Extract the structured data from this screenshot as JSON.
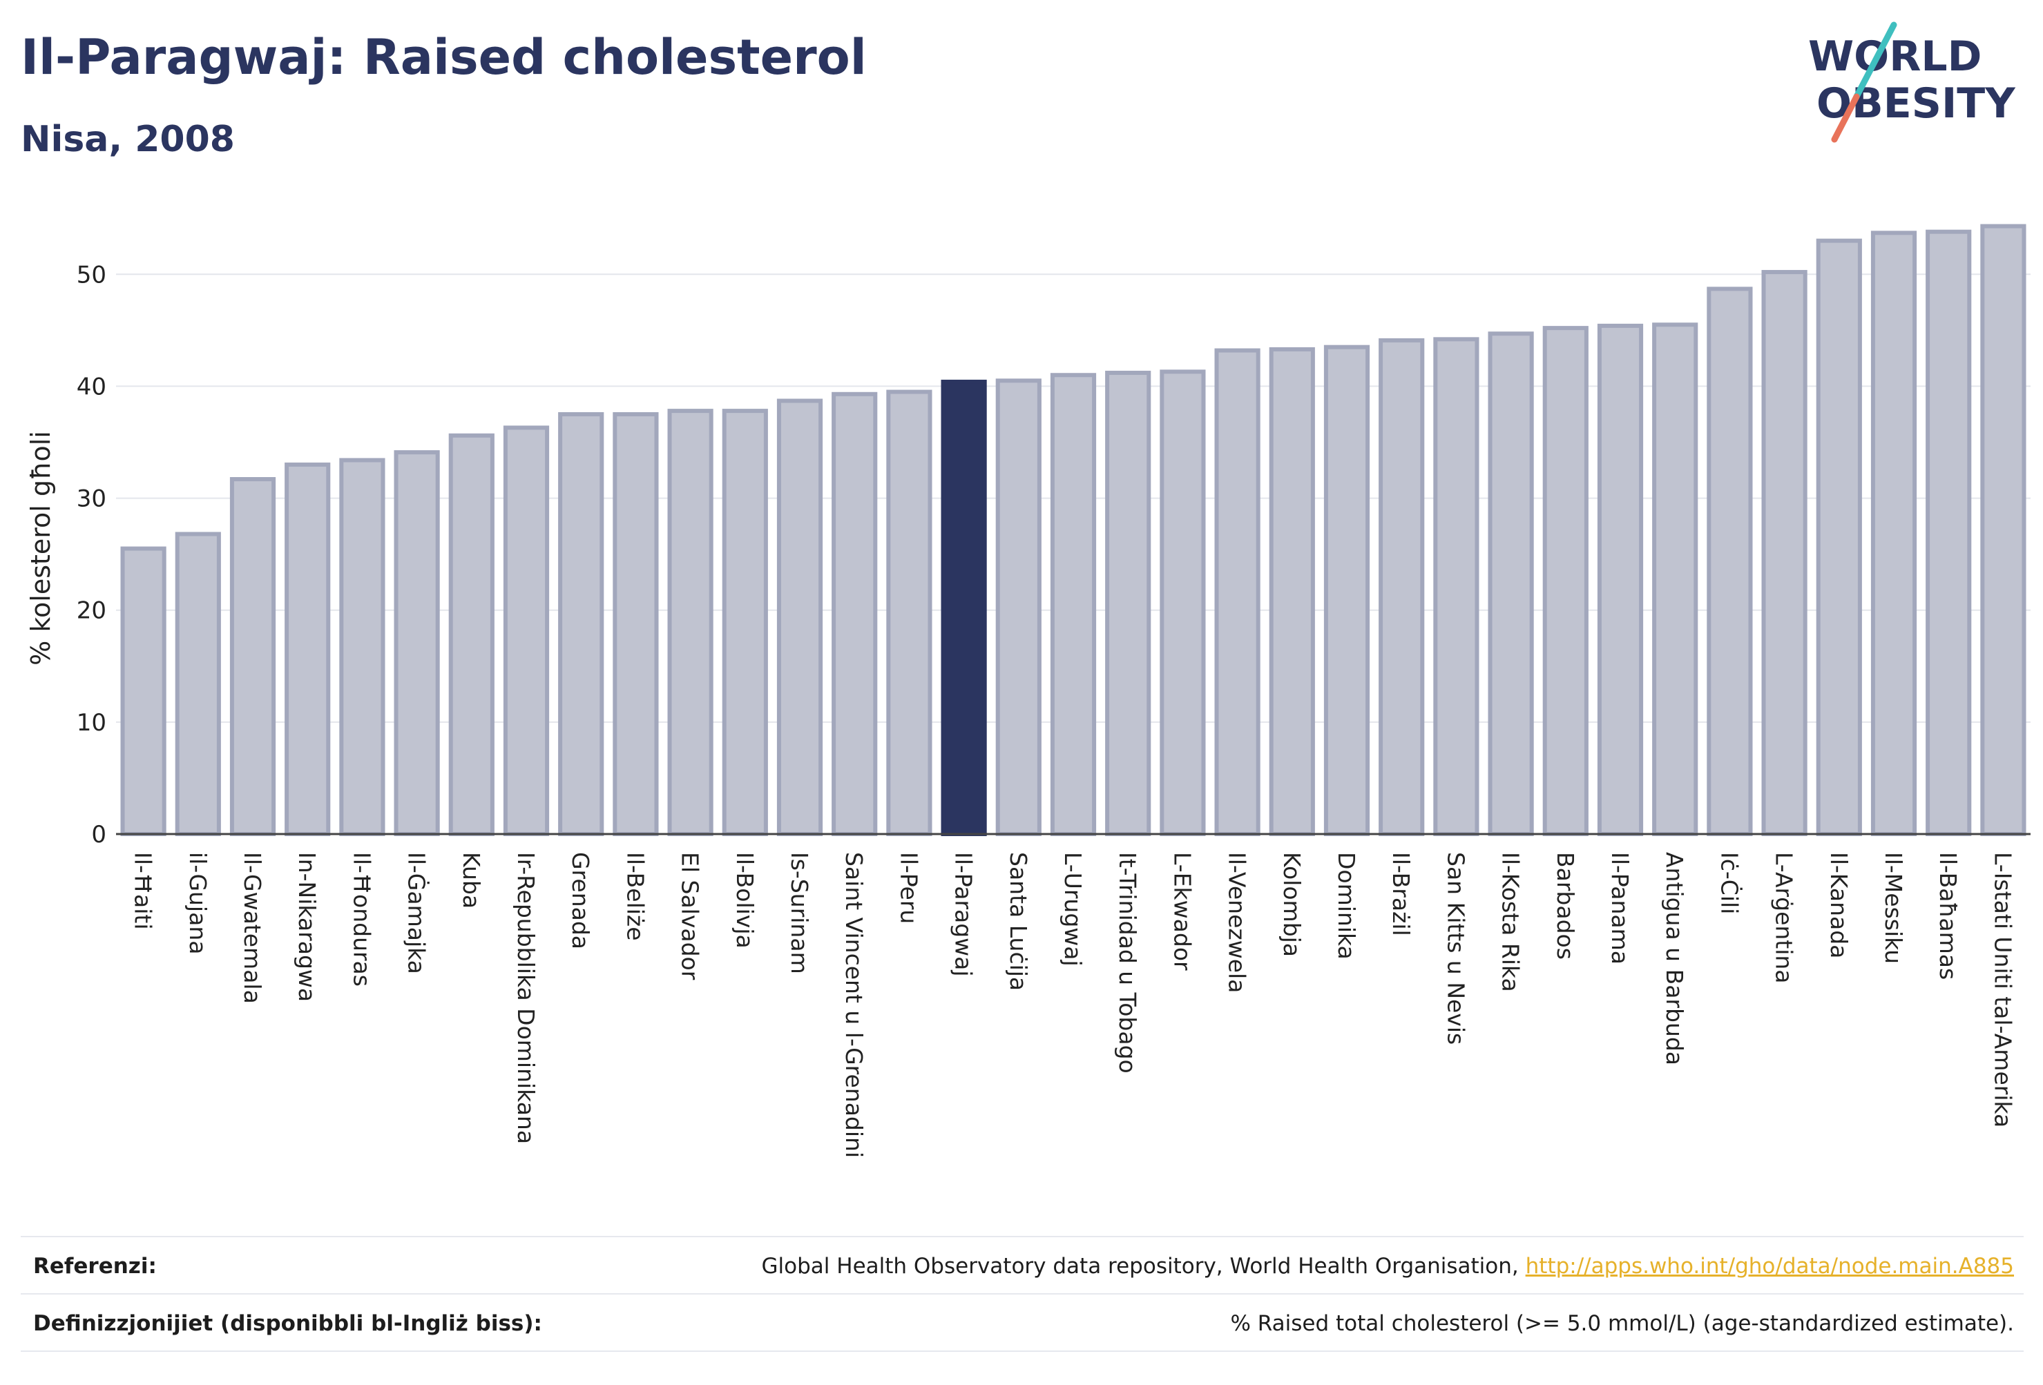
{
  "header": {
    "title": "Il-Paragwaj: Raised cholesterol",
    "subtitle": "Nisa, 2008"
  },
  "logo": {
    "line1": "WORLD",
    "line2": "OBESITY"
  },
  "colors": {
    "highlight": "#2b3560",
    "bar_fill": "#c0c3d0",
    "bar_stroke": "#a2a7bc",
    "grid": "#e4e6ec",
    "axis": "#444444",
    "link": "#e6b12a",
    "logo_teal": "#3fbfbf",
    "logo_coral": "#e8735a"
  },
  "chart_data": {
    "type": "bar",
    "title": "Il-Paragwaj: Raised cholesterol",
    "subtitle": "Nisa, 2008",
    "xlabel": "",
    "ylabel": "% kolesterol għoli",
    "ylim": [
      0,
      56
    ],
    "yticks": [
      0,
      10,
      20,
      30,
      40,
      50
    ],
    "grid": true,
    "highlight": "Il-Paragwaj",
    "categories": [
      "Il-Ħaiti",
      "il-Gujana",
      "Il-Gwatemala",
      "In-Nikaragwa",
      "Il-Ħonduras",
      "Il-Ġamajka",
      "Kuba",
      "Ir-Repubblika Dominikana",
      "Grenada",
      "Il-Beliże",
      "El Salvador",
      "Il-Bolivja",
      "Is-Surinam",
      "Saint Vincent u l-Grenadini",
      "Il-Peru",
      "Il-Paragwaj",
      "Santa Luċija",
      "L-Urugwaj",
      "It-Trinidad u Tobago",
      "L-Ekwador",
      "Il-Venezwela",
      "Kolombja",
      "Dominika",
      "Il-Brażil",
      "San Kitts u Nevis",
      "Il-Kosta Rika",
      "Barbados",
      "Il-Panama",
      "Antigua u Barbuda",
      "Iċ-Ċili",
      "L-Arġentina",
      "Il-Kanada",
      "Il-Messiku",
      "Il-Baħamas",
      "L-Istati Uniti tal-Amerika"
    ],
    "values": [
      25.5,
      26.8,
      31.7,
      33.0,
      33.4,
      34.1,
      35.6,
      36.3,
      37.5,
      37.5,
      37.8,
      37.8,
      38.7,
      39.3,
      39.5,
      40.4,
      40.5,
      41.0,
      41.2,
      41.3,
      43.2,
      43.3,
      43.5,
      44.1,
      44.2,
      44.7,
      45.2,
      45.4,
      45.5,
      48.7,
      50.2,
      53.0,
      53.7,
      53.8,
      54.3
    ]
  },
  "footer": {
    "references_label": "Referenzi:",
    "references_text": "Global Health Observatory data repository, World Health Organisation, ",
    "references_link": "http://apps.who.int/gho/data/node.main.A885",
    "definitions_label": "Definizzjonijiet (disponibbli bl-Ingliż biss):",
    "definitions_text": "% Raised total cholesterol (>= 5.0 mmol/L) (age-standardized estimate)."
  }
}
